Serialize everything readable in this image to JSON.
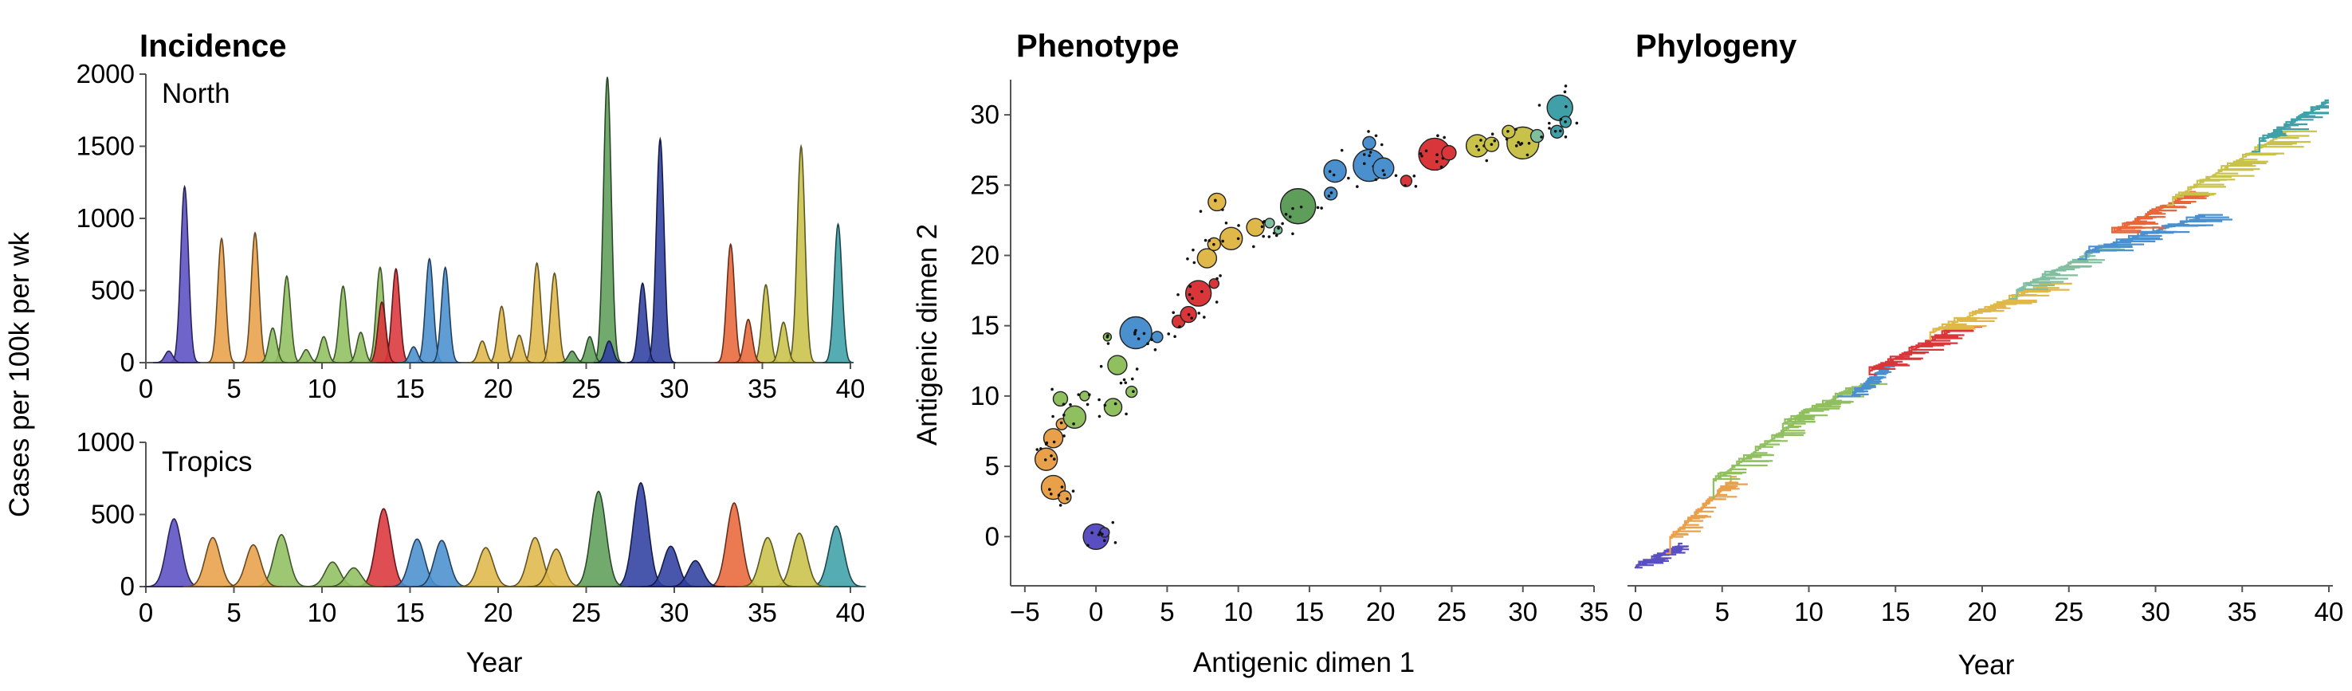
{
  "colors": {
    "palette": [
      "#5a4fc2",
      "#e8a04a",
      "#8fbf5e",
      "#4a8fce",
      "#d9363a",
      "#e0b84a",
      "#5f9e5a",
      "#2f3fa0",
      "#7fbf9f",
      "#e8663a",
      "#c9c24a",
      "#3fa0a8"
    ]
  },
  "chart_data": [
    {
      "id": "north",
      "type": "area",
      "title": "Incidence",
      "subtitle": "North",
      "ylabel": "Cases per 100k per wk",
      "xlabel": "",
      "xlim": [
        0,
        40
      ],
      "ylim": [
        0,
        2000
      ],
      "xticks": [
        "0",
        "5",
        "10",
        "15",
        "20",
        "25",
        "30",
        "35",
        "40"
      ],
      "yticks": [
        "0",
        "500",
        "1000",
        "1500",
        "2000"
      ],
      "peaks": [
        {
          "x": 1.3,
          "y": 80,
          "c": 0
        },
        {
          "x": 2.2,
          "y": 1220,
          "c": 0
        },
        {
          "x": 4.3,
          "y": 860,
          "c": 1
        },
        {
          "x": 6.2,
          "y": 900,
          "c": 1
        },
        {
          "x": 7.2,
          "y": 240,
          "c": 2
        },
        {
          "x": 8.0,
          "y": 600,
          "c": 2
        },
        {
          "x": 9.1,
          "y": 90,
          "c": 2
        },
        {
          "x": 10.1,
          "y": 180,
          "c": 2
        },
        {
          "x": 11.2,
          "y": 530,
          "c": 2
        },
        {
          "x": 12.2,
          "y": 210,
          "c": 2
        },
        {
          "x": 13.3,
          "y": 660,
          "c": 2
        },
        {
          "x": 13.4,
          "y": 420,
          "c": 4
        },
        {
          "x": 14.2,
          "y": 650,
          "c": 4
        },
        {
          "x": 15.2,
          "y": 110,
          "c": 3
        },
        {
          "x": 16.1,
          "y": 720,
          "c": 3
        },
        {
          "x": 17.0,
          "y": 660,
          "c": 3
        },
        {
          "x": 19.1,
          "y": 150,
          "c": 5
        },
        {
          "x": 20.2,
          "y": 390,
          "c": 5
        },
        {
          "x": 21.2,
          "y": 190,
          "c": 5
        },
        {
          "x": 22.2,
          "y": 690,
          "c": 5
        },
        {
          "x": 23.2,
          "y": 620,
          "c": 5
        },
        {
          "x": 24.2,
          "y": 80,
          "c": 6
        },
        {
          "x": 25.2,
          "y": 180,
          "c": 6
        },
        {
          "x": 26.2,
          "y": 1980,
          "c": 6
        },
        {
          "x": 26.3,
          "y": 150,
          "c": 7
        },
        {
          "x": 28.2,
          "y": 550,
          "c": 7
        },
        {
          "x": 29.2,
          "y": 1550,
          "c": 7
        },
        {
          "x": 33.2,
          "y": 820,
          "c": 9
        },
        {
          "x": 34.2,
          "y": 300,
          "c": 9
        },
        {
          "x": 35.2,
          "y": 540,
          "c": 10
        },
        {
          "x": 36.2,
          "y": 280,
          "c": 10
        },
        {
          "x": 37.2,
          "y": 1500,
          "c": 10
        },
        {
          "x": 39.3,
          "y": 960,
          "c": 11
        }
      ]
    },
    {
      "id": "tropics",
      "type": "area",
      "subtitle": "Tropics",
      "xlabel": "Year",
      "xlim": [
        0,
        40
      ],
      "ylim": [
        0,
        1000
      ],
      "xticks": [
        "0",
        "5",
        "10",
        "15",
        "20",
        "25",
        "30",
        "35",
        "40"
      ],
      "yticks": [
        "0",
        "500",
        "1000"
      ],
      "peaks": [
        {
          "x": 1.6,
          "y": 470,
          "c": 0
        },
        {
          "x": 3.8,
          "y": 340,
          "c": 1
        },
        {
          "x": 6.1,
          "y": 290,
          "c": 1
        },
        {
          "x": 7.7,
          "y": 360,
          "c": 2
        },
        {
          "x": 10.6,
          "y": 170,
          "c": 2
        },
        {
          "x": 11.8,
          "y": 130,
          "c": 2
        },
        {
          "x": 13.5,
          "y": 540,
          "c": 4
        },
        {
          "x": 15.4,
          "y": 330,
          "c": 3
        },
        {
          "x": 16.8,
          "y": 320,
          "c": 3
        },
        {
          "x": 19.3,
          "y": 270,
          "c": 5
        },
        {
          "x": 22.1,
          "y": 340,
          "c": 5
        },
        {
          "x": 23.3,
          "y": 260,
          "c": 5
        },
        {
          "x": 25.7,
          "y": 660,
          "c": 6
        },
        {
          "x": 28.1,
          "y": 720,
          "c": 7
        },
        {
          "x": 29.8,
          "y": 280,
          "c": 7
        },
        {
          "x": 31.2,
          "y": 180,
          "c": 7
        },
        {
          "x": 33.4,
          "y": 580,
          "c": 9
        },
        {
          "x": 35.3,
          "y": 340,
          "c": 10
        },
        {
          "x": 37.1,
          "y": 370,
          "c": 10
        },
        {
          "x": 39.2,
          "y": 420,
          "c": 11
        }
      ]
    },
    {
      "id": "phenotype",
      "type": "scatter",
      "title": "Phenotype",
      "xlabel": "Antigenic dimen 1",
      "ylabel": "Antigenic dimen 2",
      "xlim": [
        -6,
        35
      ],
      "ylim": [
        -3.5,
        32.5
      ],
      "xticks": [
        "−5",
        "0",
        "5",
        "10",
        "15",
        "20",
        "25",
        "30",
        "35"
      ],
      "yticks": [
        "0",
        "5",
        "10",
        "15",
        "20",
        "25",
        "30"
      ],
      "points": [
        {
          "x": 0.0,
          "y": 0.0,
          "r": 16,
          "c": 0
        },
        {
          "x": 0.6,
          "y": 0.3,
          "r": 6,
          "c": 0
        },
        {
          "x": -3.0,
          "y": 3.5,
          "r": 15,
          "c": 1
        },
        {
          "x": -2.2,
          "y": 2.8,
          "r": 8,
          "c": 1
        },
        {
          "x": -3.5,
          "y": 5.5,
          "r": 14,
          "c": 1
        },
        {
          "x": -3.0,
          "y": 7.0,
          "r": 12,
          "c": 1
        },
        {
          "x": -2.4,
          "y": 8.0,
          "r": 7,
          "c": 1
        },
        {
          "x": -1.5,
          "y": 8.5,
          "r": 14,
          "c": 2
        },
        {
          "x": -2.5,
          "y": 9.8,
          "r": 9,
          "c": 2
        },
        {
          "x": -0.8,
          "y": 10.0,
          "r": 6,
          "c": 2
        },
        {
          "x": 1.2,
          "y": 9.2,
          "r": 11,
          "c": 2
        },
        {
          "x": 2.5,
          "y": 10.3,
          "r": 7,
          "c": 2
        },
        {
          "x": 1.5,
          "y": 12.2,
          "r": 12,
          "c": 2
        },
        {
          "x": 0.8,
          "y": 14.2,
          "r": 5,
          "c": 2
        },
        {
          "x": 2.8,
          "y": 14.5,
          "r": 20,
          "c": 3
        },
        {
          "x": 4.3,
          "y": 14.2,
          "r": 7,
          "c": 3
        },
        {
          "x": 5.8,
          "y": 15.3,
          "r": 8,
          "c": 4
        },
        {
          "x": 6.5,
          "y": 15.8,
          "r": 10,
          "c": 4
        },
        {
          "x": 7.2,
          "y": 17.3,
          "r": 16,
          "c": 4
        },
        {
          "x": 8.3,
          "y": 18.0,
          "r": 6,
          "c": 4
        },
        {
          "x": 7.8,
          "y": 19.8,
          "r": 12,
          "c": 5
        },
        {
          "x": 8.3,
          "y": 20.8,
          "r": 8,
          "c": 5
        },
        {
          "x": 9.5,
          "y": 21.2,
          "r": 14,
          "c": 5
        },
        {
          "x": 8.5,
          "y": 23.8,
          "r": 11,
          "c": 5
        },
        {
          "x": 11.2,
          "y": 22.0,
          "r": 11,
          "c": 5
        },
        {
          "x": 12.2,
          "y": 22.3,
          "r": 6,
          "c": 8
        },
        {
          "x": 12.8,
          "y": 21.8,
          "r": 5,
          "c": 8
        },
        {
          "x": 14.2,
          "y": 23.5,
          "r": 22,
          "c": 6
        },
        {
          "x": 16.5,
          "y": 24.4,
          "r": 8,
          "c": 3
        },
        {
          "x": 16.8,
          "y": 26.0,
          "r": 14,
          "c": 3
        },
        {
          "x": 19.2,
          "y": 26.4,
          "r": 20,
          "c": 3
        },
        {
          "x": 20.2,
          "y": 26.2,
          "r": 13,
          "c": 3
        },
        {
          "x": 19.2,
          "y": 28.0,
          "r": 8,
          "c": 3
        },
        {
          "x": 21.8,
          "y": 25.3,
          "r": 7,
          "c": 4
        },
        {
          "x": 23.8,
          "y": 27.2,
          "r": 20,
          "c": 4
        },
        {
          "x": 24.8,
          "y": 27.3,
          "r": 9,
          "c": 4
        },
        {
          "x": 26.8,
          "y": 27.8,
          "r": 14,
          "c": 10
        },
        {
          "x": 27.8,
          "y": 27.9,
          "r": 9,
          "c": 10
        },
        {
          "x": 30.0,
          "y": 28.0,
          "r": 20,
          "c": 10
        },
        {
          "x": 29.0,
          "y": 28.8,
          "r": 8,
          "c": 10
        },
        {
          "x": 31.0,
          "y": 28.5,
          "r": 8,
          "c": 8
        },
        {
          "x": 32.6,
          "y": 30.5,
          "r": 16,
          "c": 11
        },
        {
          "x": 33.0,
          "y": 29.5,
          "r": 7,
          "c": 11
        },
        {
          "x": 32.4,
          "y": 28.8,
          "r": 8,
          "c": 11
        }
      ]
    },
    {
      "id": "phylogeny",
      "type": "tree",
      "title": "Phylogeny",
      "xlabel": "Year",
      "xlim": [
        0,
        40
      ],
      "xticks": [
        "0",
        "5",
        "10",
        "15",
        "20",
        "25",
        "30",
        "35",
        "40"
      ],
      "clades": [
        {
          "x0": 0.0,
          "x1": 2.5,
          "y0": 0.02,
          "y1": 0.06,
          "c": 0
        },
        {
          "x0": 2.0,
          "x1": 5.5,
          "y0": 0.08,
          "y1": 0.2,
          "c": 1
        },
        {
          "x0": 4.5,
          "x1": 9.5,
          "y0": 0.2,
          "y1": 0.33,
          "c": 2
        },
        {
          "x0": 8.5,
          "x1": 13.0,
          "y0": 0.32,
          "y1": 0.4,
          "c": 2
        },
        {
          "x0": 12.5,
          "x1": 14.5,
          "y0": 0.38,
          "y1": 0.44,
          "c": 3
        },
        {
          "x0": 13.5,
          "x1": 18.5,
          "y0": 0.43,
          "y1": 0.52,
          "c": 4
        },
        {
          "x0": 17.0,
          "x1": 23.5,
          "y0": 0.51,
          "y1": 0.61,
          "c": 5
        },
        {
          "x0": 22.0,
          "x1": 27.0,
          "y0": 0.6,
          "y1": 0.69,
          "c": 8
        },
        {
          "x0": 26.0,
          "x1": 32.5,
          "y0": 0.68,
          "y1": 0.75,
          "c": 3
        },
        {
          "x0": 27.5,
          "x1": 32.0,
          "y0": 0.72,
          "y1": 0.8,
          "c": 9
        },
        {
          "x0": 31.0,
          "x1": 37.5,
          "y0": 0.79,
          "y1": 0.93,
          "c": 10
        },
        {
          "x0": 36.0,
          "x1": 39.8,
          "y0": 0.91,
          "y1": 0.99,
          "c": 11
        }
      ]
    }
  ]
}
